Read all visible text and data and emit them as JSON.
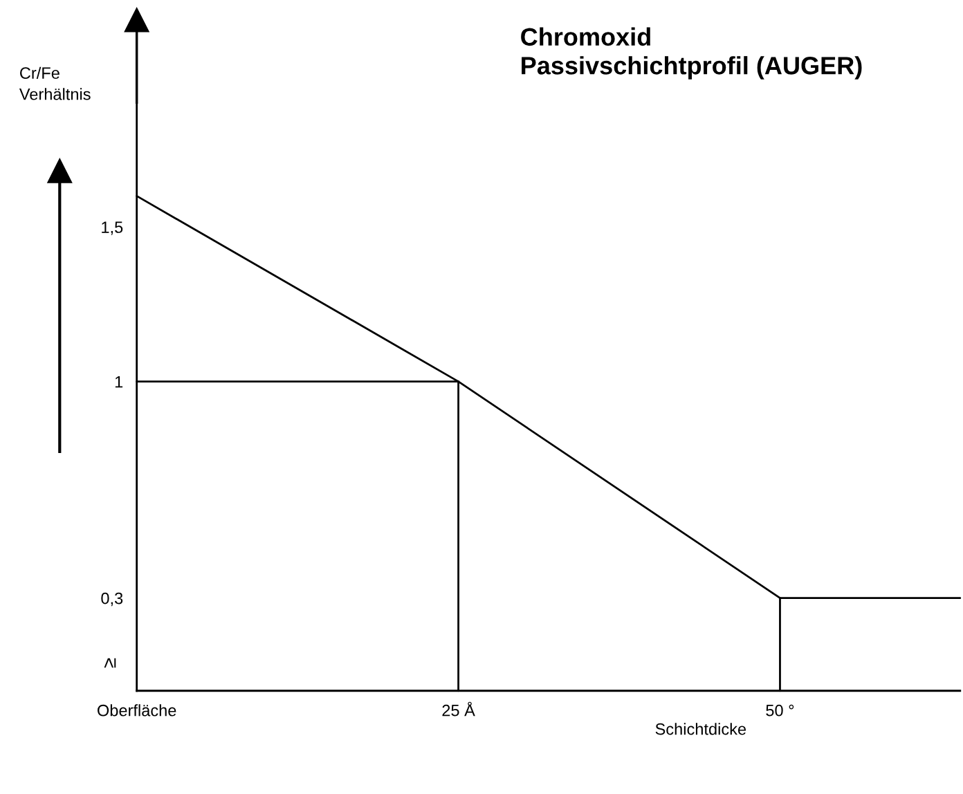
{
  "chart_data": {
    "type": "line",
    "title": "Chromoxid\nPassivschichtprofil (AUGER)",
    "ylabel": "Cr/Fe\nVerhältnis",
    "xlabel": "Schichtdicke",
    "annotations": [
      "≥"
    ],
    "series": [
      {
        "color": "#000000",
        "x": [
          0,
          25,
          50,
          64
        ],
        "values": [
          1.6,
          1,
          0.3,
          0.3
        ]
      },
      {
        "color": "#000000",
        "x": [
          0,
          25
        ],
        "values": [
          1,
          1
        ]
      },
      {
        "color": "#000000",
        "x": [
          25,
          25
        ],
        "values": [
          0,
          1
        ]
      },
      {
        "color": "#000000",
        "x": [
          50,
          50
        ],
        "values": [
          0,
          0.3
        ]
      }
    ],
    "xlim": [
      0,
      64
    ],
    "ylim": [
      0,
      1.9
    ],
    "xticks": [
      {
        "value": 0,
        "label": "Oberfläche"
      },
      {
        "value": 25,
        "label": "25 Å"
      },
      {
        "value": 50,
        "label": "50 °"
      }
    ],
    "yticks": [
      {
        "value": 0.3,
        "label": "0,3"
      },
      {
        "value": 1,
        "label": "1"
      },
      {
        "value": 1.5,
        "label": "1,5"
      }
    ],
    "grid": false,
    "legend": false,
    "marker": "none",
    "line_style": "solid"
  }
}
